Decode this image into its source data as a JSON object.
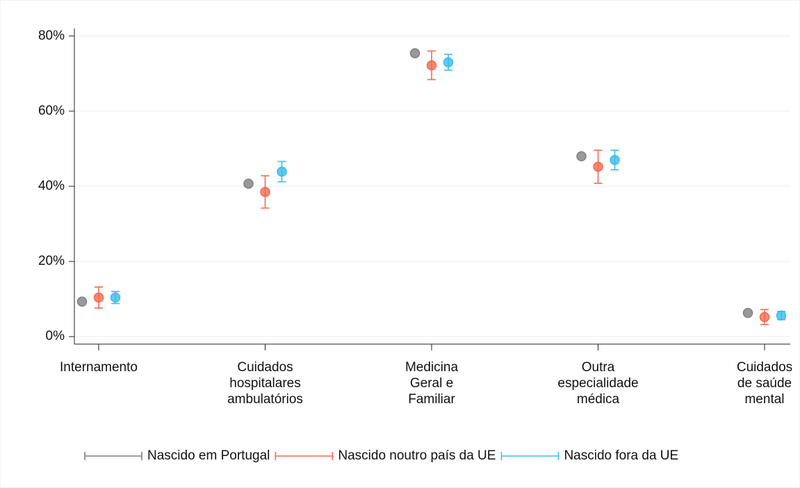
{
  "chart_data": {
    "type": "dot_errorbar",
    "categories": [
      "Internamento",
      "Cuidados\nhospitalares\nambulatórios",
      "Medicina\nGeral e\nFamiliar",
      "Outra\nespecialidade\nmédica",
      "Cuidados\nde saúde\nmental"
    ],
    "series": [
      {
        "name": "Nascido em Portugal",
        "color": "#7f7f7f",
        "values": [
          9.3,
          40.7,
          75.4,
          48.0,
          6.3
        ]
      },
      {
        "name": "Nascido noutro país da UE",
        "color": "#f06b4f",
        "values": [
          10.4,
          38.5,
          72.2,
          45.2,
          5.2
        ],
        "errors": [
          2.8,
          4.3,
          3.8,
          4.4,
          2.0
        ]
      },
      {
        "name": "Nascido fora da UE",
        "color": "#38bde9",
        "values": [
          10.4,
          43.9,
          73.0,
          47.0,
          5.6
        ],
        "errors": [
          1.6,
          2.7,
          2.1,
          2.6,
          1.1
        ]
      }
    ],
    "ylim": [
      -2,
      82
    ],
    "yticks": [
      {
        "value": 0,
        "label": "0%"
      },
      {
        "value": 20,
        "label": "20%"
      },
      {
        "value": 40,
        "label": "40%"
      },
      {
        "value": 60,
        "label": "60%"
      },
      {
        "value": 80,
        "label": "80%"
      }
    ],
    "grid": true
  }
}
